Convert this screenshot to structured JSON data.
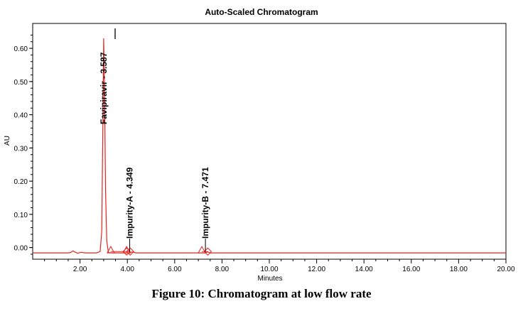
{
  "chart_data": {
    "type": "line",
    "title": "Auto-Scaled Chromatogram",
    "xlabel": "Minutes",
    "ylabel": "AU",
    "xlim": [
      0.0,
      20.0
    ],
    "ylim": [
      -0.035,
      0.675
    ],
    "x_ticks": [
      2.0,
      4.0,
      6.0,
      8.0,
      10.0,
      12.0,
      14.0,
      16.0,
      18.0,
      20.0
    ],
    "x_tick_labels": [
      "2.00",
      "4.00",
      "6.00",
      "8.00",
      "10.00",
      "12.00",
      "14.00",
      "16.00",
      "18.00",
      "20.00"
    ],
    "y_ticks": [
      0.0,
      0.1,
      0.2,
      0.3,
      0.4,
      0.5,
      0.6
    ],
    "y_tick_labels": [
      "0.00",
      "0.10",
      "0.20",
      "0.30",
      "0.40",
      "0.50",
      "0.60"
    ],
    "series": [
      {
        "name": "signal",
        "color": "#e8221c",
        "x": [
          0.0,
          1.5,
          1.6,
          1.7,
          1.8,
          1.9,
          2.05,
          2.2,
          2.5,
          2.7,
          2.85,
          2.92,
          2.96,
          3.0,
          3.04,
          3.08,
          3.13,
          3.2,
          3.35,
          3.6,
          4.1,
          4.2,
          4.35,
          7.3,
          7.4,
          7.5,
          20.0
        ],
        "y": [
          -0.016,
          -0.016,
          -0.015,
          -0.01,
          -0.014,
          -0.017,
          -0.014,
          -0.016,
          -0.016,
          -0.016,
          -0.012,
          0.05,
          0.33,
          0.63,
          0.45,
          0.17,
          0.02,
          -0.015,
          -0.016,
          -0.016,
          -0.016,
          -0.013,
          -0.016,
          -0.016,
          -0.013,
          -0.016,
          -0.016
        ]
      }
    ],
    "peaks": [
      {
        "name": "Favipiravir",
        "rt": 3.587,
        "label": "Favipiravir - 3.587",
        "apex_x": 3.0,
        "apex_y": 0.63,
        "start_x": 3.3,
        "end_x": 3.97
      },
      {
        "name": "Impurity-A",
        "rt": 4.349,
        "label": "Impurity-A - 4.349",
        "apex_x": 4.1,
        "apex_y": -0.012,
        "start_x": 3.97,
        "end_x": 4.12
      },
      {
        "name": "Impurity-B",
        "rt": 7.471,
        "label": "Impurity-B - 7.471",
        "apex_x": 7.3,
        "apex_y": -0.012,
        "start_x": 7.15,
        "end_x": 7.4
      }
    ],
    "colors": {
      "signal": "#e8221c",
      "marker": "#e8221c",
      "axis": "#000000"
    }
  },
  "caption": "Figure 10: Chromatogram at low flow rate"
}
